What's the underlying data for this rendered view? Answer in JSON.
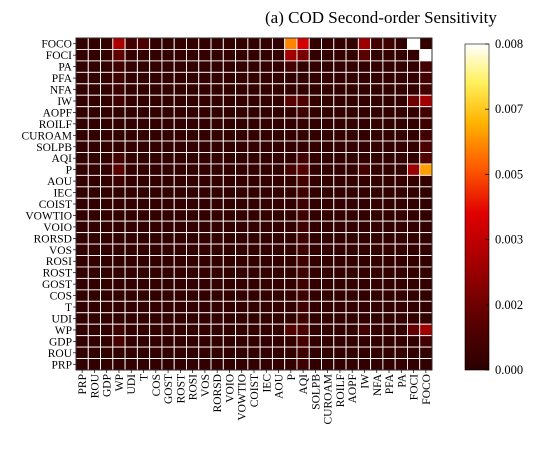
{
  "title": "(a)  COD Second-order Sensitivity",
  "chart_data": {
    "type": "heatmap",
    "title": "(a)  COD Second-order Sensitivity",
    "row_labels": [
      "FOCO",
      "FOCI",
      "PA",
      "PFA",
      "NFA",
      "IW",
      "AOPF",
      "ROILF",
      "CUROAM",
      "SOLPB",
      "AQI",
      "P",
      "AOU",
      "IEC",
      "COIST",
      "VOWTIO",
      "VOIO",
      "RORSD",
      "VOS",
      "ROSI",
      "ROST",
      "GOST",
      "COS",
      "T",
      "UDI",
      "WP",
      "GDP",
      "ROU",
      "PRP"
    ],
    "col_labels": [
      "PRP",
      "ROU",
      "GDP",
      "WP",
      "UDI",
      "T",
      "COS",
      "GOST",
      "ROST",
      "ROSI",
      "VOS",
      "RORSD",
      "VOIO",
      "VOWTIO",
      "COIST",
      "IEC",
      "AOU",
      "P",
      "AQI",
      "SOLPB",
      "CUROAM",
      "ROILF",
      "AOPF",
      "IW",
      "NFA",
      "PFA",
      "PA",
      "FOCI",
      "FOCO"
    ],
    "colorbar": {
      "min": 0.0,
      "max": 0.008,
      "ticks": [
        "0.008",
        "0.007",
        "0.005",
        "0.003",
        "0.002",
        "0.000"
      ]
    },
    "base_value": 0.0002,
    "cells": [
      [
        "FOCO",
        "WP",
        0.0028
      ],
      [
        "FOCO",
        "UDI",
        0.0006
      ],
      [
        "FOCO",
        "T",
        0.0009
      ],
      [
        "FOCO",
        "P",
        0.0055
      ],
      [
        "FOCO",
        "AQI",
        0.0036
      ],
      [
        "FOCO",
        "IW",
        0.0025
      ],
      [
        "FOCO",
        "NFA",
        0.0006
      ],
      [
        "FOCO",
        "PFA",
        0.0005
      ],
      [
        "FOCO",
        "FOCI",
        0.008
      ],
      [
        "FOCI",
        "WP",
        0.0013
      ],
      [
        "FOCI",
        "P",
        0.0026
      ],
      [
        "FOCI",
        "AQI",
        0.0018
      ],
      [
        "FOCI",
        "IW",
        0.0012
      ],
      [
        "FOCI",
        "FOCO",
        0.008
      ],
      [
        "PA",
        "WP",
        0.0005
      ],
      [
        "PA",
        "P",
        0.0006
      ],
      [
        "PA",
        "FOCO",
        0.0006
      ],
      [
        "PFA",
        "WP",
        0.0005
      ],
      [
        "PFA",
        "FOCO",
        0.0006
      ],
      [
        "NFA",
        "WP",
        0.0004
      ],
      [
        "NFA",
        "FOCO",
        0.0006
      ],
      [
        "IW",
        "WP",
        0.0005
      ],
      [
        "IW",
        "P",
        0.0011
      ],
      [
        "IW",
        "AQI",
        0.0009
      ],
      [
        "IW",
        "FOCI",
        0.0016
      ],
      [
        "IW",
        "FOCO",
        0.0026
      ],
      [
        "AOPF",
        "AQI",
        0.0005
      ],
      [
        "AOPF",
        "FOCO",
        0.0006
      ],
      [
        "ROILF",
        "FOCO",
        0.0005
      ],
      [
        "CUROAM",
        "FOCO",
        0.0006
      ],
      [
        "SOLPB",
        "FOCO",
        0.0008
      ],
      [
        "AQI",
        "WP",
        0.0006
      ],
      [
        "AQI",
        "AQI",
        0.0006
      ],
      [
        "AQI",
        "FOCO",
        0.001
      ],
      [
        "P",
        "WP",
        0.0011
      ],
      [
        "P",
        "P",
        0.0007
      ],
      [
        "P",
        "AQI",
        0.001
      ],
      [
        "P",
        "IW",
        0.0006
      ],
      [
        "P",
        "FOCI",
        0.0025
      ],
      [
        "P",
        "FOCO",
        0.0058
      ],
      [
        "AOU",
        "WP",
        0.0004
      ],
      [
        "AOU",
        "AQI",
        0.0006
      ],
      [
        "IEC",
        "AQI",
        0.0005
      ],
      [
        "COIST",
        "AQI",
        0.0005
      ],
      [
        "VOWTIO",
        "AQI",
        0.0005
      ],
      [
        "VOIO",
        "AQI",
        0.0005
      ],
      [
        "RORSD",
        "AQI",
        0.0005
      ],
      [
        "VOS",
        "AQI",
        0.0005
      ],
      [
        "ROSI",
        "AQI",
        0.0005
      ],
      [
        "ROST",
        "AQI",
        0.0005
      ],
      [
        "GOST",
        "AQI",
        0.0005
      ],
      [
        "COS",
        "AQI",
        0.0005
      ],
      [
        "T",
        "AQI",
        0.0005
      ],
      [
        "UDI",
        "AQI",
        0.0005
      ],
      [
        "WP",
        "WP",
        0.0005
      ],
      [
        "WP",
        "P",
        0.001
      ],
      [
        "WP",
        "AQI",
        0.0008
      ],
      [
        "WP",
        "IW",
        0.0006
      ],
      [
        "WP",
        "FOCI",
        0.0014
      ],
      [
        "WP",
        "FOCO",
        0.0026
      ],
      [
        "GDP",
        "WP",
        0.0007
      ],
      [
        "GDP",
        "AQI",
        0.0007
      ],
      [
        "GDP",
        "FOCO",
        0.0006
      ],
      [
        "ROU",
        "AQI",
        0.0005
      ],
      [
        "PRP",
        "AQI",
        0.0005
      ]
    ]
  }
}
